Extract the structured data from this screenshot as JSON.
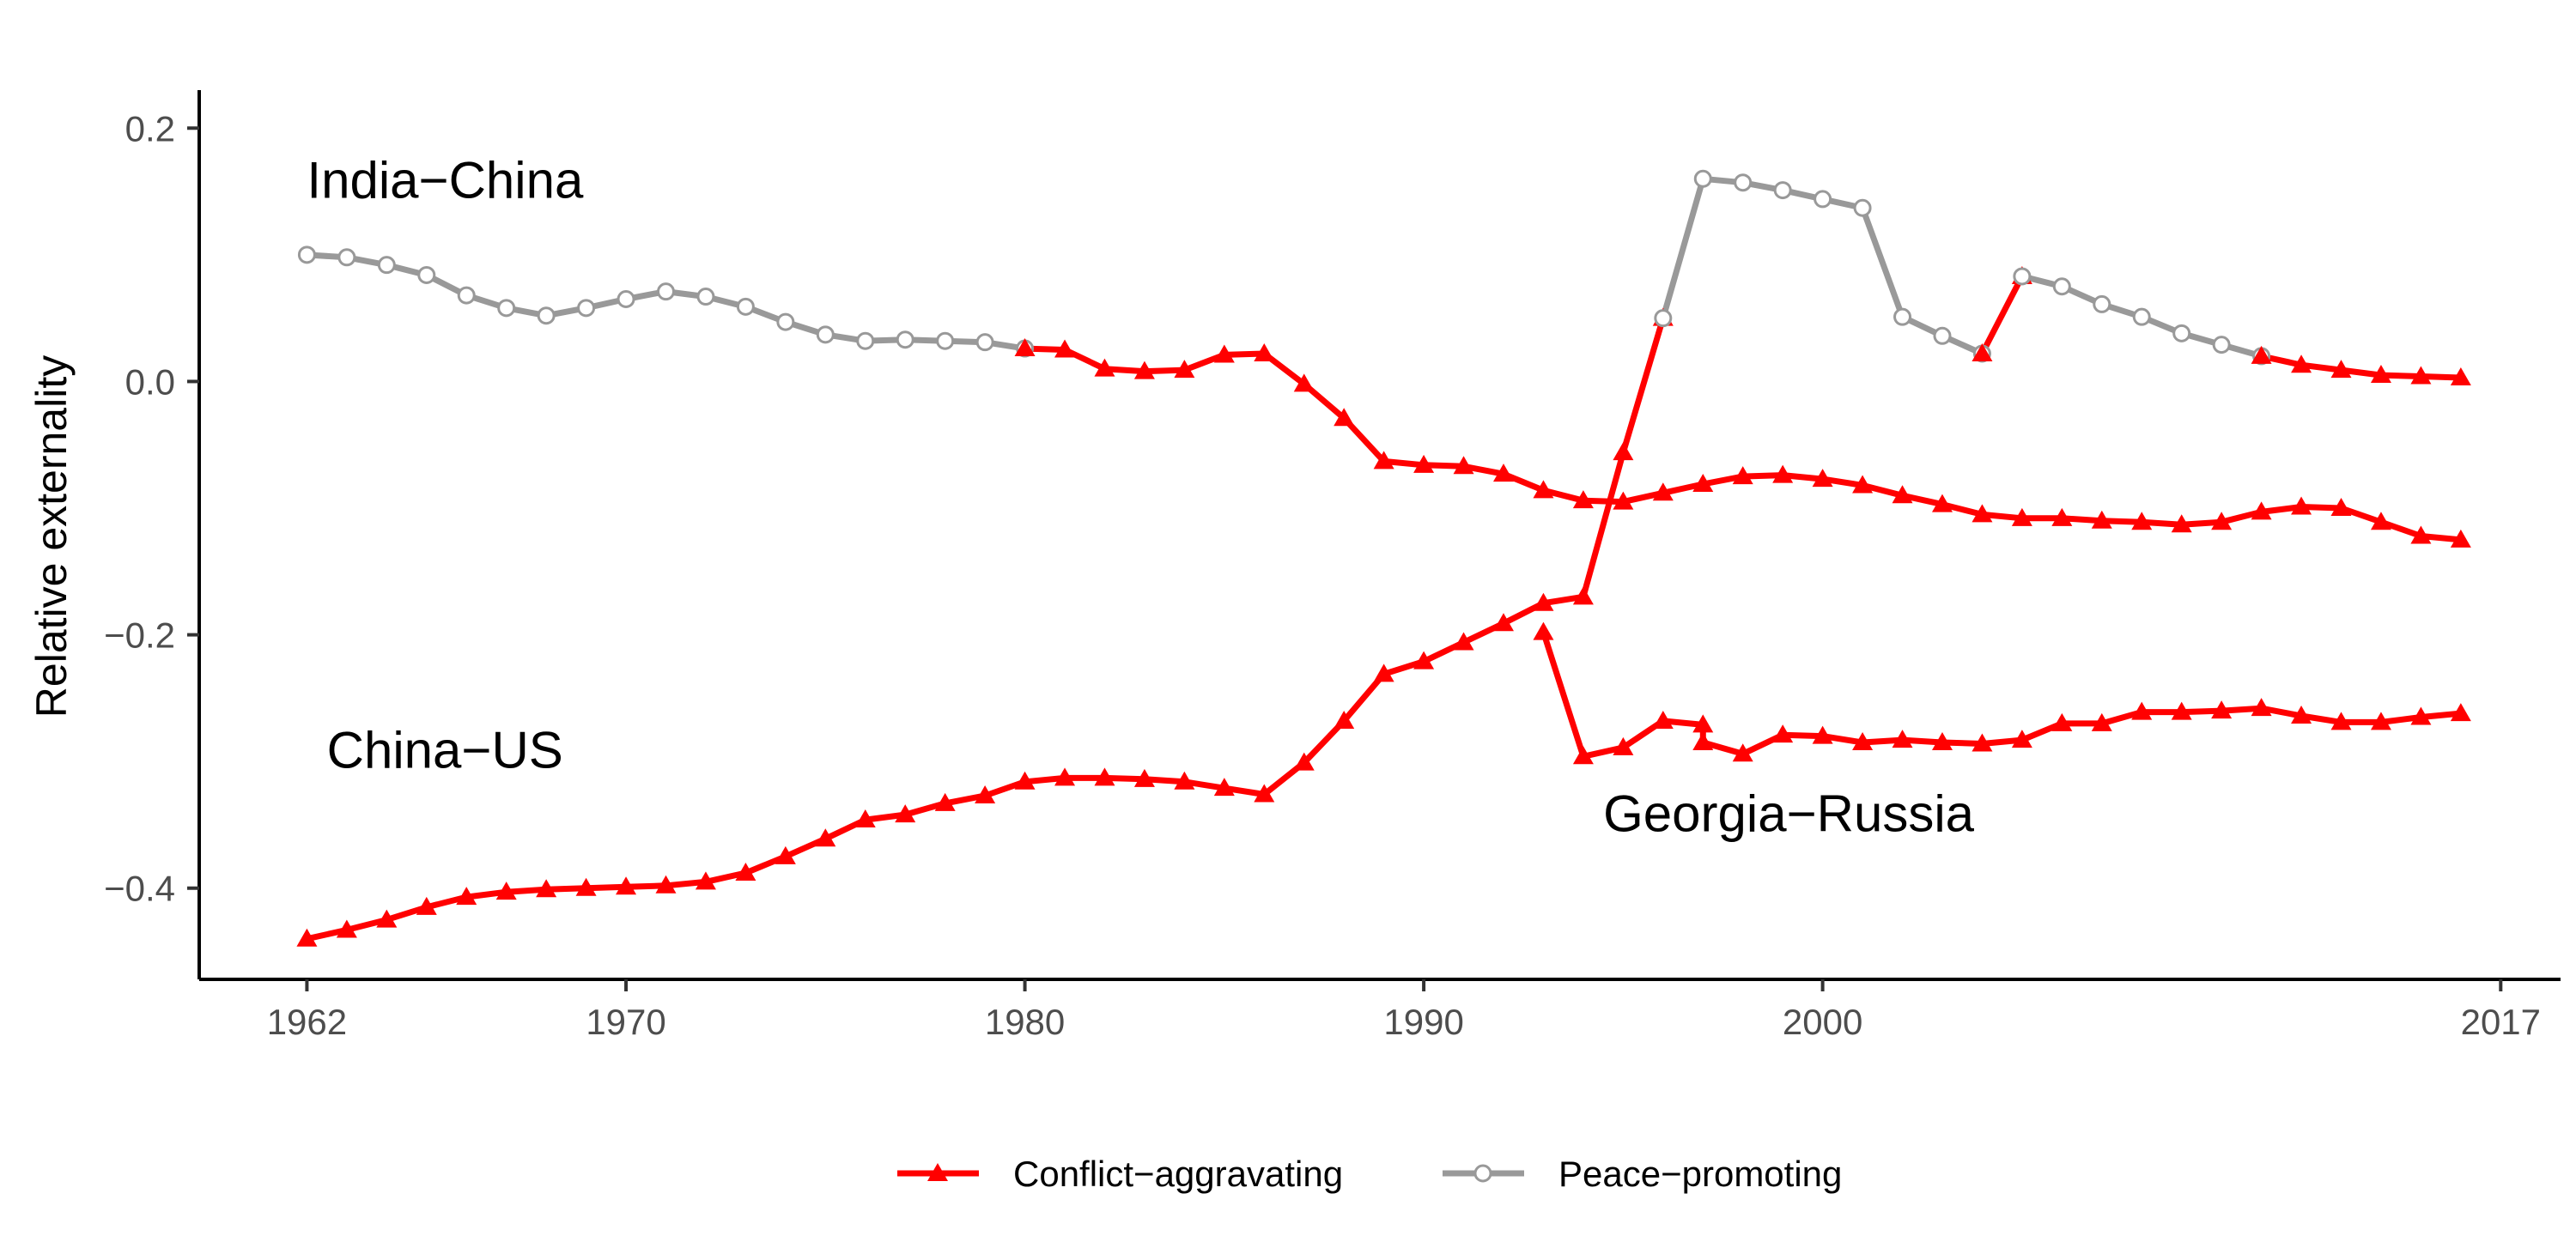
{
  "chart_data": {
    "type": "line",
    "title": "",
    "xlabel": "",
    "ylabel": "Relative externality",
    "xlim": [
      1959.3,
      2018.5
    ],
    "ylim": [
      -0.472,
      0.23
    ],
    "x_ticks": [
      1962,
      1970,
      1980,
      1990,
      2000,
      2017
    ],
    "y_ticks": [
      0.2,
      0.0,
      -0.2,
      -0.4
    ],
    "y_tick_labels": [
      "0.2",
      "0.0",
      "−0.2",
      "−0.4"
    ],
    "grid": false,
    "legend_position": "bottom",
    "colors": {
      "conflict": "#ff0000",
      "peace": "#999999"
    },
    "legend": [
      {
        "key": "conflict",
        "label": "Conflict−aggravating"
      },
      {
        "key": "peace",
        "label": "Peace−promoting"
      }
    ],
    "annotations": [
      {
        "text": "India−China",
        "x": 1962,
        "y": 0.145
      },
      {
        "text": "China−US",
        "x": 1962.5,
        "y": -0.305
      },
      {
        "text": "Georgia−Russia",
        "x": 1994.5,
        "y": -0.355
      }
    ],
    "series": [
      {
        "pair": "India-China",
        "segments": [
          {
            "type": "peace",
            "x": [
              1962,
              1963,
              1964,
              1965,
              1966,
              1967,
              1968,
              1969,
              1970,
              1971,
              1972,
              1973,
              1974,
              1975,
              1976,
              1977,
              1978,
              1979,
              1980
            ],
            "y": [
              0.1,
              0.098,
              0.092,
              0.084,
              0.068,
              0.058,
              0.052,
              0.058,
              0.065,
              0.071,
              0.067,
              0.059,
              0.047,
              0.037,
              0.032,
              0.033,
              0.032,
              0.031,
              0.026
            ]
          },
          {
            "type": "conflict",
            "x": [
              1980,
              1981,
              1982,
              1983,
              1984,
              1985,
              1986,
              1987,
              1988,
              1989,
              1990,
              1991,
              1992,
              1993,
              1994,
              1995,
              1996,
              1997,
              1998,
              1999,
              2000,
              2001,
              2002,
              2003,
              2004,
              2005,
              2006,
              2007,
              2008,
              2009,
              2010,
              2011,
              2012,
              2013,
              2014,
              2015,
              2016
            ],
            "y": [
              0.026,
              0.025,
              0.01,
              0.008,
              0.009,
              0.021,
              0.022,
              -0.002,
              -0.029,
              -0.063,
              -0.066,
              -0.067,
              -0.073,
              -0.086,
              -0.094,
              -0.095,
              -0.088,
              -0.081,
              -0.075,
              -0.074,
              -0.077,
              -0.082,
              -0.09,
              -0.097,
              -0.105,
              -0.108,
              -0.108,
              -0.11,
              -0.111,
              -0.113,
              -0.111,
              -0.103,
              -0.099,
              -0.1,
              -0.111,
              -0.122,
              -0.125
            ]
          }
        ]
      },
      {
        "pair": "China-US",
        "segments": [
          {
            "type": "conflict",
            "x": [
              1962,
              1963,
              1964,
              1965,
              1966,
              1967,
              1968,
              1969,
              1970,
              1971,
              1972,
              1973,
              1974,
              1975,
              1976,
              1977,
              1978,
              1979,
              1980,
              1981,
              1982,
              1983,
              1984,
              1985,
              1986,
              1987,
              1988,
              1989,
              1990,
              1991,
              1992,
              1993,
              1994,
              1995,
              1996
            ],
            "y": [
              -0.44,
              -0.433,
              -0.425,
              -0.415,
              -0.407,
              -0.403,
              -0.401,
              -0.4,
              -0.399,
              -0.398,
              -0.395,
              -0.388,
              -0.375,
              -0.361,
              -0.346,
              -0.342,
              -0.333,
              -0.327,
              -0.316,
              -0.313,
              -0.313,
              -0.314,
              -0.316,
              -0.321,
              -0.326,
              -0.301,
              -0.268,
              -0.231,
              -0.221,
              -0.206,
              -0.191,
              -0.175,
              -0.17,
              -0.056,
              0.05
            ]
          },
          {
            "type": "peace",
            "x": [
              1996,
              1997,
              1998,
              1999,
              2000,
              2001,
              2002,
              2003,
              2004
            ],
            "y": [
              0.05,
              0.16,
              0.157,
              0.151,
              0.144,
              0.137,
              0.051,
              0.036,
              0.022
            ]
          },
          {
            "type": "conflict",
            "x": [
              2004,
              2005
            ],
            "y": [
              0.022,
              0.083
            ]
          },
          {
            "type": "peace",
            "x": [
              2005,
              2006,
              2007,
              2008,
              2009,
              2010,
              2011
            ],
            "y": [
              0.083,
              0.075,
              0.061,
              0.051,
              0.038,
              0.029,
              0.02
            ]
          },
          {
            "type": "conflict",
            "x": [
              2011,
              2012,
              2013,
              2014,
              2015,
              2016
            ],
            "y": [
              0.02,
              0.013,
              0.009,
              0.005,
              0.004,
              0.003
            ]
          }
        ]
      },
      {
        "pair": "Georgia-Russia",
        "segments": [
          {
            "type": "conflict",
            "x": [
              1993,
              1994,
              1995,
              1996,
              1997,
              1997,
              1998,
              1999,
              2000,
              2001,
              2002,
              2003,
              2004,
              2005,
              2006,
              2007,
              2008,
              2009,
              2010,
              2011,
              2012,
              2013,
              2014,
              2015,
              2016
            ],
            "y": [
              -0.198,
              -0.296,
              -0.289,
              -0.268,
              -0.271,
              -0.285,
              -0.294,
              -0.279,
              -0.28,
              -0.285,
              -0.283,
              -0.285,
              -0.286,
              -0.283,
              -0.27,
              -0.27,
              -0.261,
              -0.261,
              -0.26,
              -0.258,
              -0.264,
              -0.269,
              -0.269,
              -0.265,
              -0.262
            ]
          }
        ]
      }
    ]
  }
}
